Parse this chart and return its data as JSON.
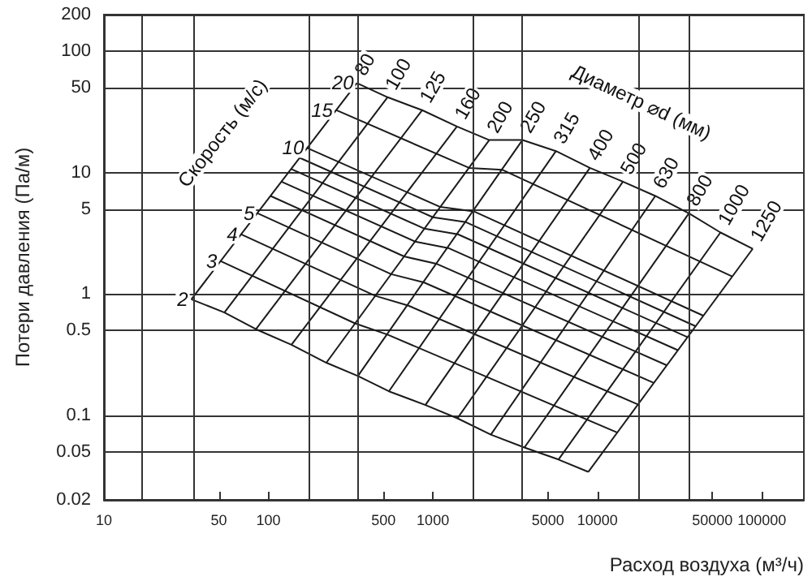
{
  "chart_data": {
    "type": "line",
    "xlabel": "Расход воздуха (м³/ч)",
    "ylabel": "Потери давления (Па/м)",
    "annotations": [
      "Скорость (м/с)",
      "Диаметр ⌀d (мм)"
    ],
    "log": "xy",
    "grid": "y",
    "legend": false,
    "xlim": [
      10,
      180000
    ],
    "xticks": [
      10,
      50,
      100,
      500,
      1000,
      5000,
      10000,
      50000,
      100000
    ],
    "ylim": [
      0.02,
      200
    ],
    "yticks": [
      0.02,
      0.05,
      0.1,
      0.5,
      1,
      5,
      10,
      50,
      100,
      200
    ],
    "ref_lines": [
      {
        "axis": "x",
        "value": 17,
        "color": "#333333"
      },
      {
        "axis": "x",
        "value": 35,
        "color": "#333333"
      },
      {
        "axis": "x",
        "value": 175,
        "color": "#333333"
      },
      {
        "axis": "x",
        "value": 350,
        "color": "#333333"
      },
      {
        "axis": "x",
        "value": 1750,
        "color": "#333333"
      },
      {
        "axis": "x",
        "value": 3500,
        "color": "#333333"
      },
      {
        "axis": "x",
        "value": 18000,
        "color": "#333333"
      },
      {
        "axis": "x",
        "value": 36000,
        "color": "#333333"
      }
    ],
    "series": [
      {
        "name": "80",
        "color": "#1a1a1a",
        "x": [
          34,
          345
        ],
        "values": [
          0.9,
          54.6
        ]
      },
      {
        "name": "100",
        "color": "#1a1a1a",
        "x": [
          54,
          530
        ],
        "values": [
          0.7,
          41.7
        ]
      },
      {
        "name": "125",
        "color": "#1a1a1a",
        "x": [
          84,
          860
        ],
        "values": [
          0.51,
          32.6
        ]
      },
      {
        "name": "160",
        "color": "#1a1a1a",
        "x": [
          138,
          1400
        ],
        "values": [
          0.38,
          23.9
        ]
      },
      {
        "name": "200",
        "color": "#1a1a1a",
        "x": [
          225,
          2200
        ],
        "values": [
          0.27,
          18.5
        ]
      },
      {
        "name": "250",
        "color": "#1a1a1a",
        "x": [
          350,
          3500
        ],
        "values": [
          0.21,
          18.5
        ]
      },
      {
        "name": "315",
        "color": "#1a1a1a",
        "x": [
          540,
          5600
        ],
        "values": [
          0.157,
          15
        ]
      },
      {
        "name": "400",
        "color": "#1a1a1a",
        "x": [
          900,
          9000
        ],
        "values": [
          0.121,
          10.9
        ]
      },
      {
        "name": "500",
        "color": "#1a1a1a",
        "x": [
          1410,
          14300
        ],
        "values": [
          0.094,
          8.4
        ]
      },
      {
        "name": "630",
        "color": "#1a1a1a",
        "x": [
          2250,
          22500
        ],
        "values": [
          0.069,
          6.4
        ]
      },
      {
        "name": "800",
        "color": "#1a1a1a",
        "x": [
          3600,
          36000
        ],
        "values": [
          0.054,
          4.6
        ]
      },
      {
        "name": "1000",
        "color": "#1a1a1a",
        "x": [
          5800,
          56000
        ],
        "values": [
          0.043,
          3.2
        ]
      },
      {
        "name": "1250",
        "color": "#1a1a1a",
        "x": [
          8800,
          88000
        ],
        "values": [
          0.034,
          2.35
        ]
      },
      {
        "name": "2",
        "color": "#1a1a1a",
        "x": [
          8800,
          5800,
          3600,
          2250,
          1410,
          900,
          540,
          350,
          225,
          138,
          84,
          54,
          34
        ],
        "values": [
          0.034,
          0.043,
          0.054,
          0.069,
          0.094,
          0.121,
          0.157,
          0.21,
          0.27,
          0.38,
          0.51,
          0.7,
          0.9
        ]
      },
      {
        "name": "3",
        "color": "#1a1a1a",
        "x": [
          13150,
          530,
          336,
          51
        ],
        "values": [
          0.072,
          0.46,
          0.57,
          1.86
        ]
      },
      {
        "name": "4",
        "color": "#1a1a1a",
        "x": [
          17500,
          706,
          447,
          68
        ],
        "values": [
          0.123,
          0.8,
          0.96,
          3.1
        ]
      },
      {
        "name": "5",
        "color": "#1a1a1a",
        "x": [
          21900,
          880,
          558,
          86
        ],
        "values": [
          0.185,
          1.24,
          1.45,
          4.6
        ]
      },
      {
        "color": "#1a1a1a",
        "x": [
          26300,
          1060,
          668,
          103
        ],
        "values": [
          0.258,
          1.76,
          2.03,
          6.4
        ]
      },
      {
        "color": "#1a1a1a",
        "x": [
          30800,
          1240,
          780,
          120
        ],
        "values": [
          0.343,
          2.38,
          2.69,
          8.4
        ]
      },
      {
        "color": "#1a1a1a",
        "x": [
          35200,
          1420,
          889,
          137
        ],
        "values": [
          0.44,
          3.09,
          3.44,
          10.7
        ]
      },
      {
        "color": "#1a1a1a",
        "x": [
          39500,
          1590,
          1000,
          155
        ],
        "values": [
          0.54,
          3.89,
          4.27,
          13.2
        ]
      },
      {
        "name": "10",
        "color": "#1a1a1a",
        "x": [
          44000,
          1770,
          1110,
          172
        ],
        "values": [
          0.66,
          4.78,
          5.19,
          15.9
        ]
      },
      {
        "name": "15",
        "color": "#1a1a1a",
        "x": [
          65900,
          2650,
          1660,
          258
        ],
        "values": [
          1.39,
          10.5,
          10.9,
          32.7
        ]
      },
      {
        "name": "20",
        "color": "#1a1a1a",
        "x": [
          88000,
          56000,
          36000,
          22500,
          14300,
          9000,
          5600,
          3500,
          2200,
          1400,
          860,
          530,
          345
        ],
        "values": [
          2.35,
          3.2,
          4.6,
          6.4,
          8.4,
          10.9,
          15,
          18.5,
          18.5,
          23.9,
          32.6,
          41.7,
          54.6
        ]
      }
    ]
  }
}
